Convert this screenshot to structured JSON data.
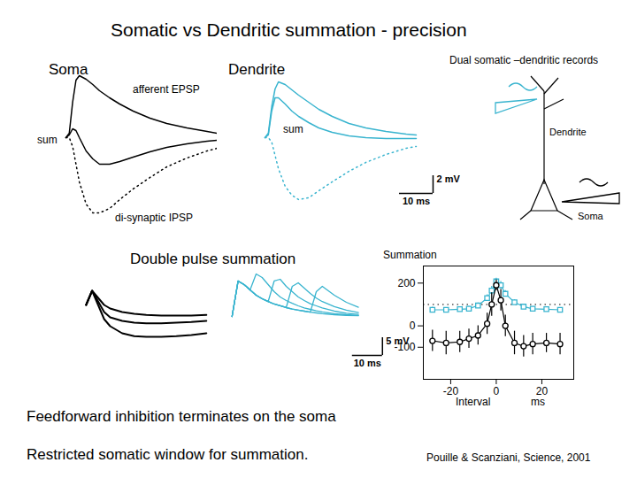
{
  "slide": {
    "title": "Somatic vs Dendritic summation - precision",
    "diagram": {
      "title": "Dual somatic –dendritic records",
      "labels": [
        "Dendrite",
        "Soma"
      ]
    },
    "section_title": "Double pulse summation",
    "conclusions": [
      "Feedforward inhibition terminates on the soma",
      "Restricted somatic window for summation."
    ],
    "citation": "Pouille & Scanziani, Science, 2001"
  },
  "chart_data": [
    {
      "type": "line",
      "title": "Soma",
      "annotations": [
        "afferent EPSP",
        "sum",
        "di-synaptic IPSP"
      ],
      "tick_labels": false,
      "xlim": [
        -5,
        45
      ],
      "ylim": [
        -9.5,
        8
      ],
      "x": [
        0,
        1,
        2,
        3,
        4,
        6,
        8,
        10,
        13,
        16,
        20,
        25,
        30,
        36,
        42,
        45
      ],
      "series": [
        {
          "color": "#000000",
          "line_style": "solid",
          "values": [
            0,
            0.5,
            4,
            6.5,
            7,
            6.6,
            6,
            5.3,
            4.5,
            3.8,
            3,
            2.2,
            1.6,
            1.1,
            0.7,
            0.5
          ]
        },
        {
          "color": "#000000",
          "line_style": "solid",
          "values": [
            0,
            0.3,
            1,
            0.8,
            0,
            -1.5,
            -2.4,
            -3,
            -3,
            -2.7,
            -2.2,
            -1.6,
            -1.1,
            -0.7,
            -0.4,
            -0.3
          ]
        },
        {
          "color": "#000000",
          "line_style": "dotted",
          "values": [
            0,
            0,
            -1,
            -3,
            -5,
            -7.5,
            -8.5,
            -8.5,
            -8,
            -7,
            -5.8,
            -4.5,
            -3.3,
            -2.3,
            -1.5,
            -1.2
          ]
        }
      ]
    },
    {
      "type": "line",
      "title": "Dendrite",
      "annotations": [
        "sum"
      ],
      "tick_labels": false,
      "xlim": [
        -5,
        52
      ],
      "ylim": [
        -9.5,
        8
      ],
      "x": [
        0,
        1,
        2,
        3,
        4,
        6,
        8,
        10,
        13,
        16,
        20,
        25,
        30,
        36,
        42,
        45
      ],
      "series": [
        {
          "color": "#39b4cf",
          "line_style": "solid",
          "values": [
            0,
            0.5,
            3.5,
            5.5,
            6.3,
            6,
            5.4,
            4.8,
            4,
            3.2,
            2.4,
            1.6,
            1.1,
            0.7,
            0.4,
            0.3
          ]
        },
        {
          "color": "#39b4cf",
          "line_style": "solid",
          "values": [
            0,
            0.3,
            3,
            4.5,
            4.5,
            3.8,
            3,
            2.4,
            1.7,
            1.1,
            0.6,
            0.2,
            0,
            -0.1,
            -0.1,
            -0.1
          ]
        },
        {
          "color": "#39b4cf",
          "line_style": "dotted",
          "values": [
            0,
            0,
            -0.5,
            -2,
            -3.5,
            -5.5,
            -6.5,
            -7,
            -6.8,
            -6,
            -5,
            -3.8,
            -2.8,
            -1.9,
            -1.2,
            -1
          ]
        }
      ],
      "scale_bar": {
        "x": 10,
        "y": 2,
        "x_label": "10 ms",
        "y_label": "2 mV"
      }
    },
    {
      "type": "line",
      "tick_labels": false,
      "xlim": [
        -2,
        42
      ],
      "ylim": [
        -11,
        6
      ],
      "x": [
        0,
        2,
        4,
        6,
        8,
        12,
        16,
        20,
        25,
        30,
        35,
        40
      ],
      "series": [
        {
          "color": "#000000",
          "line_style": "solid",
          "values": [
            0,
            4,
            2,
            0,
            -1,
            -2,
            -2.5,
            -2.8,
            -3,
            -3,
            -3,
            -2.8
          ]
        },
        {
          "color": "#000000",
          "line_style": "solid",
          "values": [
            0,
            4,
            1,
            -2,
            -3.5,
            -4.5,
            -5,
            -5.2,
            -5.2,
            -5,
            -4.8,
            -4.5
          ]
        },
        {
          "color": "#000000",
          "line_style": "solid",
          "values": [
            0,
            4,
            0,
            -4,
            -6,
            -8,
            -8.8,
            -9,
            -9,
            -8.8,
            -8.5,
            -8
          ]
        }
      ]
    },
    {
      "type": "line",
      "tick_labels": false,
      "xlim": [
        -2,
        52
      ],
      "ylim": [
        -12,
        13
      ],
      "x": [
        0,
        2,
        4,
        6,
        8,
        10,
        12,
        14,
        16,
        18,
        20,
        22,
        24,
        26,
        28,
        30,
        34,
        38,
        42
      ],
      "series": [
        {
          "color": "#39b4cf",
          "line_style": "solid",
          "values": [
            0,
            10,
            9,
            7.5,
            6,
            5,
            4.2,
            3.5,
            3,
            2.5,
            2.1,
            1.8,
            1.5,
            1.2,
            1,
            0.8,
            0.5,
            0.3,
            0.2
          ]
        },
        {
          "color": "#39b4cf",
          "line_style": "solid",
          "values": [
            0,
            10,
            9,
            7.5,
            12,
            11,
            9,
            7,
            5.5,
            4.5,
            3.7,
            3,
            2.4,
            2,
            1.6,
            1.3,
            0.8,
            0.5,
            0.3
          ]
        },
        {
          "color": "#39b4cf",
          "line_style": "solid",
          "values": [
            0,
            10,
            9,
            7.5,
            6,
            5,
            4.2,
            10,
            10.5,
            8.5,
            7,
            5.5,
            4.5,
            3.6,
            3,
            2.4,
            1.5,
            0.9,
            0.6
          ]
        },
        {
          "color": "#39b4cf",
          "line_style": "solid",
          "values": [
            0,
            10,
            9,
            7.5,
            6,
            5,
            4.2,
            3.5,
            3,
            2.5,
            8.5,
            9.5,
            8,
            6.5,
            5.2,
            4.2,
            2.8,
            1.8,
            1.1
          ]
        },
        {
          "color": "#39b4cf",
          "line_style": "solid",
          "values": [
            0,
            10,
            9,
            7.5,
            6,
            5,
            4.2,
            3.5,
            3,
            2.5,
            2.1,
            1.8,
            1.5,
            1.2,
            7,
            8.5,
            6,
            4,
            2.6
          ]
        }
      ],
      "scale_bar": {
        "x": 10,
        "y": 5,
        "x_label": "10 ms",
        "y_label": "5 mV"
      }
    },
    {
      "type": "line",
      "title": "Summation",
      "xlabel": "Interval",
      "xunit": "ms",
      "legend": false,
      "xlim": [
        -32,
        34
      ],
      "ylim": [
        -250,
        280
      ],
      "xticks": [
        -20,
        0,
        20
      ],
      "yticks": [
        -100,
        0,
        200
      ],
      "reference_line": {
        "value": 100,
        "line_style": "dotted"
      },
      "x": [
        -28,
        -22,
        -16,
        -12,
        -8,
        -4,
        -2,
        0,
        2,
        4,
        8,
        12,
        16,
        22,
        28
      ],
      "series": [
        {
          "color": "#39b4cf",
          "marker": "square",
          "values": [
            75,
            75,
            78,
            80,
            95,
            130,
            165,
            208,
            190,
            150,
            110,
            90,
            80,
            78,
            75
          ],
          "errors": [
            12,
            10,
            10,
            12,
            12,
            15,
            20,
            15,
            18,
            15,
            12,
            12,
            10,
            10,
            10
          ]
        },
        {
          "color": "#000000",
          "marker": "circle",
          "values": [
            -70,
            -80,
            -75,
            -60,
            -45,
            10,
            100,
            190,
            120,
            0,
            -80,
            -95,
            -85,
            -80,
            -85
          ],
          "errors": [
            50,
            55,
            50,
            45,
            45,
            50,
            55,
            25,
            50,
            50,
            55,
            50,
            50,
            45,
            50
          ]
        }
      ]
    }
  ]
}
